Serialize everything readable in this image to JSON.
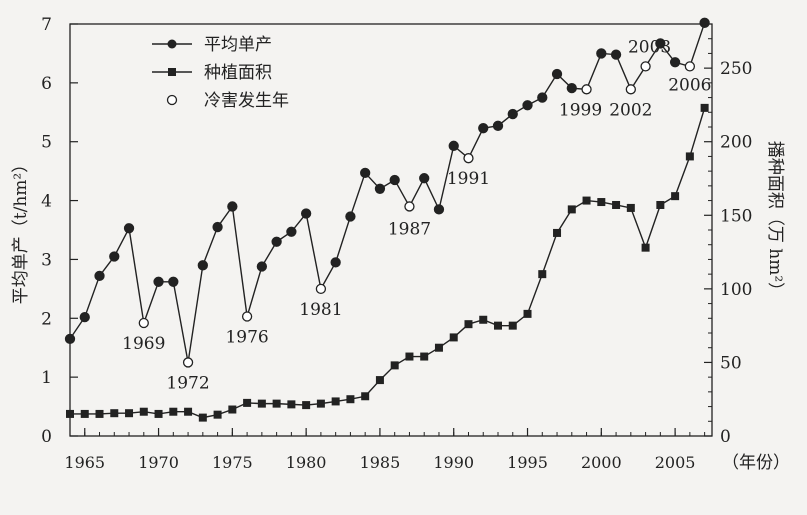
{
  "chart_data": {
    "type": "line",
    "title": "",
    "xlabel": "（年份）",
    "ylabel_left": "平均单产（t/hm²）",
    "ylabel_right": "播种面积（万 hm²）",
    "xlim": [
      1964,
      2007.5
    ],
    "ylim_left": [
      0,
      7
    ],
    "ylim_right": [
      0,
      280
    ],
    "x_ticks": [
      1965,
      1970,
      1975,
      1980,
      1985,
      1990,
      1995,
      2000,
      2005
    ],
    "y_ticks_left": [
      0,
      1,
      2,
      3,
      4,
      5,
      6,
      7
    ],
    "y_ticks_right": [
      0,
      50,
      100,
      150,
      200,
      250
    ],
    "legend": [
      "平均单产",
      "种植面积",
      "冷害发生年"
    ],
    "series": [
      {
        "name": "平均单产",
        "axis": "left",
        "marker": "filled-circle",
        "x": [
          1964,
          1965,
          1966,
          1967,
          1968,
          1969,
          1970,
          1971,
          1972,
          1973,
          1974,
          1975,
          1976,
          1977,
          1978,
          1979,
          1980,
          1981,
          1982,
          1983,
          1984,
          1985,
          1986,
          1987,
          1988,
          1989,
          1990,
          1991,
          1992,
          1993,
          1994,
          1995,
          1996,
          1997,
          1998,
          1999,
          2000,
          2001,
          2002,
          2003,
          2004,
          2005,
          2006,
          2007
        ],
        "values": [
          1.65,
          2.02,
          2.72,
          3.05,
          3.53,
          1.92,
          2.62,
          2.62,
          1.25,
          2.9,
          3.55,
          3.9,
          2.03,
          2.88,
          3.3,
          3.47,
          3.78,
          2.5,
          2.95,
          3.73,
          4.47,
          4.2,
          4.35,
          3.9,
          4.38,
          3.85,
          4.93,
          4.72,
          5.23,
          5.27,
          5.47,
          5.62,
          5.75,
          6.15,
          5.91,
          5.89,
          6.5,
          6.48,
          5.89,
          6.28,
          6.67,
          6.35,
          6.28,
          7.02
        ]
      },
      {
        "name": "种植面积",
        "axis": "right",
        "marker": "filled-square",
        "x": [
          1964,
          1965,
          1966,
          1967,
          1968,
          1969,
          1970,
          1971,
          1972,
          1973,
          1974,
          1975,
          1976,
          1977,
          1978,
          1979,
          1980,
          1981,
          1982,
          1983,
          1984,
          1985,
          1986,
          1987,
          1988,
          1989,
          1990,
          1991,
          1992,
          1993,
          1994,
          1995,
          1996,
          1997,
          1998,
          1999,
          2000,
          2001,
          2002,
          2003,
          2004,
          2005,
          2006,
          2007
        ],
        "values": [
          15,
          15,
          15,
          15.5,
          15.5,
          16.5,
          15,
          16.5,
          16.5,
          12.5,
          14.5,
          18,
          22.5,
          22,
          22,
          21.5,
          21,
          22,
          23.5,
          25,
          27,
          38,
          48,
          54,
          54,
          60,
          67,
          76,
          79,
          75,
          75,
          83,
          110,
          138,
          154,
          160,
          159,
          157,
          155,
          128,
          157,
          163,
          190,
          223
        ]
      }
    ],
    "cold_damage_years": [
      {
        "year": 1969,
        "value": 1.92,
        "label": "1969"
      },
      {
        "year": 1972,
        "value": 1.25,
        "label": "1972"
      },
      {
        "year": 1976,
        "value": 2.03,
        "label": "1976"
      },
      {
        "year": 1981,
        "value": 2.5,
        "label": "1981"
      },
      {
        "year": 1987,
        "value": 3.9,
        "label": "1987"
      },
      {
        "year": 1991,
        "value": 4.72,
        "label": "1991"
      },
      {
        "year": 1999,
        "value": 5.89,
        "label": "1999"
      },
      {
        "year": 2002,
        "value": 5.89,
        "label": "2002"
      },
      {
        "year": 2003,
        "value": 6.28,
        "label": "2003"
      },
      {
        "year": 2006,
        "value": 6.28,
        "label": "2006"
      }
    ]
  }
}
